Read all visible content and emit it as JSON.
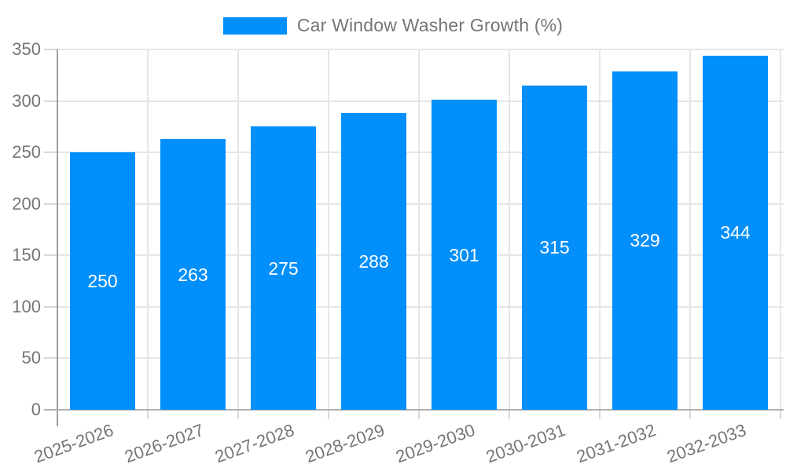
{
  "legend": {
    "label": "Car Window Washer Growth (%)"
  },
  "colors": {
    "bar": "#008FFB",
    "grid": "#e6e6e6",
    "axis_y": "#9e9e9e",
    "axis_x": "#b0b0b0",
    "tick": "#d9d9d9",
    "tick_label": "#757575",
    "bar_label": "#ffffff",
    "legend_text": "#757575",
    "background": "#ffffff"
  },
  "chart_data": {
    "type": "bar",
    "title": "",
    "xlabel": "",
    "ylabel": "",
    "categories": [
      "2025-2026",
      "2026-2027",
      "2027-2028",
      "2028-2029",
      "2029-2030",
      "2030-2031",
      "2031-2032",
      "2032-2033"
    ],
    "series": [
      {
        "name": "Car Window Washer Growth (%)",
        "values": [
          250,
          263,
          275,
          288,
          301,
          315,
          329,
          344
        ]
      }
    ],
    "value_labels": [
      "250",
      "263",
      "275",
      "288",
      "301",
      "315",
      "329",
      "344"
    ],
    "ylim": [
      0,
      350
    ],
    "yticks": [
      0,
      50,
      100,
      150,
      200,
      250,
      300,
      350
    ],
    "grid": true,
    "legend_position": "top-center",
    "x_tick_rotation_deg": -20,
    "bar_value_label_position": "center"
  }
}
